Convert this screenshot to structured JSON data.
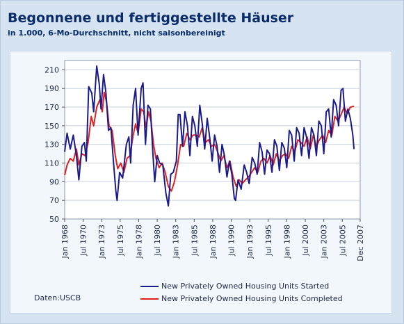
{
  "header": {
    "title": "Begonnene und fertiggestellte Häuser",
    "subtitle": "in 1.000, 6-Mo-Durchschnitt, nicht saisonbereinigt"
  },
  "source_label": "Daten:USCB",
  "colors": {
    "started": "#1a1a8c",
    "completed": "#e02020",
    "background": "#d6e4f1",
    "title": "#0a2c6a"
  },
  "chart_data": {
    "type": "line",
    "title": "Begonnene und fertiggestellte Häuser",
    "subtitle": "in 1.000, 6-Mo-Durchschnitt, nicht saisonbereinigt",
    "xlabel": "",
    "ylabel": "",
    "xlim": [
      "1968-01",
      "2007-12"
    ],
    "ylim": [
      50,
      220
    ],
    "yticks": [
      50,
      70,
      90,
      110,
      130,
      150,
      170,
      190,
      210
    ],
    "xticks": [
      {
        "label": "Jan 1968",
        "date": "1968-01"
      },
      {
        "label": "Jul 1970",
        "date": "1970-07"
      },
      {
        "label": "Jan 1973",
        "date": "1973-01"
      },
      {
        "label": "Jul 1975",
        "date": "1975-07"
      },
      {
        "label": "Jan 1978",
        "date": "1978-01"
      },
      {
        "label": "Jul 1980",
        "date": "1980-07"
      },
      {
        "label": "Jan 1983",
        "date": "1983-01"
      },
      {
        "label": "Jul 1985",
        "date": "1985-07"
      },
      {
        "label": "Jan 1988",
        "date": "1988-01"
      },
      {
        "label": "Jul 1990",
        "date": "1990-07"
      },
      {
        "label": "Jan 1993",
        "date": "1993-01"
      },
      {
        "label": "Jul 1995",
        "date": "1995-07"
      },
      {
        "label": "Jan 1998",
        "date": "1998-01"
      },
      {
        "label": "Jul 2000",
        "date": "2000-07"
      },
      {
        "label": "Jan 2003",
        "date": "2003-01"
      },
      {
        "label": "Jul 2005",
        "date": "2005-07"
      },
      {
        "label": "Dec 2007",
        "date": "2007-12"
      }
    ],
    "grid": "horizontal",
    "legend_position": "bottom-right",
    "series": [
      {
        "name": "New Privately Owned Housing Units Started",
        "color": "#1a1a8c",
        "points": [
          [
            "1968-01",
            122
          ],
          [
            "1968-05",
            142
          ],
          [
            "1968-10",
            125
          ],
          [
            "1969-03",
            140
          ],
          [
            "1969-08",
            118
          ],
          [
            "1969-12",
            92
          ],
          [
            "1970-05",
            128
          ],
          [
            "1970-09",
            132
          ],
          [
            "1970-12",
            112
          ],
          [
            "1971-04",
            192
          ],
          [
            "1971-09",
            185
          ],
          [
            "1971-12",
            165
          ],
          [
            "1972-05",
            214
          ],
          [
            "1972-09",
            195
          ],
          [
            "1972-12",
            168
          ],
          [
            "1973-04",
            205
          ],
          [
            "1973-08",
            185
          ],
          [
            "1973-12",
            145
          ],
          [
            "1974-04",
            148
          ],
          [
            "1974-08",
            112
          ],
          [
            "1974-12",
            80
          ],
          [
            "1975-02",
            70
          ],
          [
            "1975-06",
            100
          ],
          [
            "1975-11",
            94
          ],
          [
            "1976-05",
            130
          ],
          [
            "1976-09",
            138
          ],
          [
            "1976-12",
            110
          ],
          [
            "1977-04",
            172
          ],
          [
            "1977-08",
            190
          ],
          [
            "1977-12",
            140
          ],
          [
            "1978-05",
            190
          ],
          [
            "1978-08",
            196
          ],
          [
            "1978-12",
            130
          ],
          [
            "1979-04",
            172
          ],
          [
            "1979-08",
            168
          ],
          [
            "1979-12",
            120
          ],
          [
            "1980-03",
            90
          ],
          [
            "1980-07",
            118
          ],
          [
            "1980-11",
            110
          ],
          [
            "1981-04",
            108
          ],
          [
            "1981-09",
            78
          ],
          [
            "1982-01",
            64
          ],
          [
            "1982-05",
            98
          ],
          [
            "1982-09",
            100
          ],
          [
            "1983-02",
            112
          ],
          [
            "1983-05",
            162
          ],
          [
            "1983-08",
            162
          ],
          [
            "1983-12",
            128
          ],
          [
            "1984-04",
            165
          ],
          [
            "1984-08",
            150
          ],
          [
            "1984-12",
            118
          ],
          [
            "1985-04",
            160
          ],
          [
            "1985-08",
            150
          ],
          [
            "1985-12",
            128
          ],
          [
            "1986-04",
            172
          ],
          [
            "1986-08",
            152
          ],
          [
            "1986-12",
            125
          ],
          [
            "1987-04",
            158
          ],
          [
            "1987-08",
            138
          ],
          [
            "1987-12",
            112
          ],
          [
            "1988-04",
            140
          ],
          [
            "1988-08",
            128
          ],
          [
            "1988-12",
            100
          ],
          [
            "1989-04",
            130
          ],
          [
            "1989-08",
            118
          ],
          [
            "1989-12",
            95
          ],
          [
            "1990-04",
            112
          ],
          [
            "1990-08",
            98
          ],
          [
            "1990-12",
            72
          ],
          [
            "1991-02",
            70
          ],
          [
            "1991-06",
            92
          ],
          [
            "1991-11",
            82
          ],
          [
            "1992-04",
            108
          ],
          [
            "1992-08",
            100
          ],
          [
            "1992-12",
            88
          ],
          [
            "1993-05",
            116
          ],
          [
            "1993-09",
            110
          ],
          [
            "1994-01",
            98
          ],
          [
            "1994-05",
            132
          ],
          [
            "1994-09",
            122
          ],
          [
            "1995-01",
            98
          ],
          [
            "1995-05",
            124
          ],
          [
            "1995-09",
            120
          ],
          [
            "1996-01",
            100
          ],
          [
            "1996-05",
            135
          ],
          [
            "1996-09",
            128
          ],
          [
            "1997-01",
            102
          ],
          [
            "1997-05",
            132
          ],
          [
            "1997-09",
            126
          ],
          [
            "1998-01",
            105
          ],
          [
            "1998-05",
            145
          ],
          [
            "1998-09",
            140
          ],
          [
            "1999-01",
            112
          ],
          [
            "1999-05",
            148
          ],
          [
            "1999-09",
            142
          ],
          [
            "2000-01",
            118
          ],
          [
            "2000-05",
            148
          ],
          [
            "2000-09",
            138
          ],
          [
            "2001-01",
            115
          ],
          [
            "2001-05",
            148
          ],
          [
            "2001-09",
            140
          ],
          [
            "2002-01",
            118
          ],
          [
            "2002-05",
            155
          ],
          [
            "2002-09",
            150
          ],
          [
            "2003-01",
            120
          ],
          [
            "2003-05",
            165
          ],
          [
            "2003-09",
            168
          ],
          [
            "2004-01",
            138
          ],
          [
            "2004-05",
            178
          ],
          [
            "2004-09",
            172
          ],
          [
            "2005-01",
            150
          ],
          [
            "2005-05",
            188
          ],
          [
            "2005-08",
            190
          ],
          [
            "2005-12",
            155
          ],
          [
            "2006-04",
            168
          ],
          [
            "2006-08",
            158
          ],
          [
            "2006-12",
            140
          ],
          [
            "2007-02",
            125
          ]
        ]
      },
      {
        "name": "New Privately Owned Housing Units Completed",
        "color": "#e02020",
        "points": [
          [
            "1968-01",
            97
          ],
          [
            "1968-05",
            108
          ],
          [
            "1968-10",
            115
          ],
          [
            "1969-03",
            112
          ],
          [
            "1969-08",
            125
          ],
          [
            "1969-12",
            108
          ],
          [
            "1970-05",
            120
          ],
          [
            "1970-10",
            118
          ],
          [
            "1971-03",
            132
          ],
          [
            "1971-08",
            160
          ],
          [
            "1971-12",
            150
          ],
          [
            "1972-05",
            170
          ],
          [
            "1972-10",
            178
          ],
          [
            "1973-02",
            165
          ],
          [
            "1973-05",
            186
          ],
          [
            "1973-09",
            175
          ],
          [
            "1974-01",
            150
          ],
          [
            "1974-06",
            145
          ],
          [
            "1974-11",
            118
          ],
          [
            "1975-03",
            104
          ],
          [
            "1975-08",
            110
          ],
          [
            "1976-01",
            100
          ],
          [
            "1976-06",
            115
          ],
          [
            "1976-11",
            118
          ],
          [
            "1977-04",
            140
          ],
          [
            "1977-08",
            152
          ],
          [
            "1977-12",
            142
          ],
          [
            "1978-05",
            168
          ],
          [
            "1978-09",
            165
          ],
          [
            "1979-01",
            148
          ],
          [
            "1979-05",
            165
          ],
          [
            "1979-09",
            155
          ],
          [
            "1980-01",
            130
          ],
          [
            "1980-05",
            115
          ],
          [
            "1980-10",
            105
          ],
          [
            "1981-03",
            110
          ],
          [
            "1981-08",
            100
          ],
          [
            "1982-01",
            85
          ],
          [
            "1982-06",
            80
          ],
          [
            "1982-11",
            90
          ],
          [
            "1983-04",
            108
          ],
          [
            "1983-09",
            130
          ],
          [
            "1984-02",
            128
          ],
          [
            "1984-07",
            142
          ],
          [
            "1984-12",
            135
          ],
          [
            "1985-05",
            140
          ],
          [
            "1985-10",
            140
          ],
          [
            "1986-03",
            138
          ],
          [
            "1986-08",
            148
          ],
          [
            "1987-01",
            132
          ],
          [
            "1987-06",
            135
          ],
          [
            "1987-11",
            128
          ],
          [
            "1988-04",
            130
          ],
          [
            "1988-09",
            122
          ],
          [
            "1989-02",
            112
          ],
          [
            "1989-07",
            118
          ],
          [
            "1989-12",
            105
          ],
          [
            "1990-05",
            112
          ],
          [
            "1990-10",
            95
          ],
          [
            "1991-03",
            85
          ],
          [
            "1991-08",
            92
          ],
          [
            "1992-01",
            88
          ],
          [
            "1992-06",
            92
          ],
          [
            "1992-11",
            95
          ],
          [
            "1993-04",
            100
          ],
          [
            "1993-09",
            105
          ],
          [
            "1994-02",
            100
          ],
          [
            "1994-07",
            112
          ],
          [
            "1994-12",
            115
          ],
          [
            "1995-05",
            110
          ],
          [
            "1995-10",
            118
          ],
          [
            "1996-03",
            108
          ],
          [
            "1996-08",
            120
          ],
          [
            "1997-01",
            112
          ],
          [
            "1997-06",
            118
          ],
          [
            "1997-11",
            120
          ],
          [
            "1998-04",
            115
          ],
          [
            "1998-09",
            128
          ],
          [
            "1999-02",
            122
          ],
          [
            "1999-07",
            135
          ],
          [
            "1999-12",
            132
          ],
          [
            "2000-05",
            128
          ],
          [
            "2000-10",
            138
          ],
          [
            "2001-03",
            125
          ],
          [
            "2001-08",
            140
          ],
          [
            "2002-01",
            128
          ],
          [
            "2002-06",
            135
          ],
          [
            "2002-11",
            140
          ],
          [
            "2003-04",
            132
          ],
          [
            "2003-09",
            145
          ],
          [
            "2004-02",
            140
          ],
          [
            "2004-07",
            160
          ],
          [
            "2004-12",
            155
          ],
          [
            "2005-05",
            162
          ],
          [
            "2005-10",
            170
          ],
          [
            "2006-03",
            163
          ],
          [
            "2006-08",
            170
          ],
          [
            "2007-02",
            171
          ]
        ]
      }
    ]
  },
  "legend": {
    "started": "New Privately Owned Housing Units Started",
    "completed": "New Privately Owned Housing Units Completed"
  }
}
